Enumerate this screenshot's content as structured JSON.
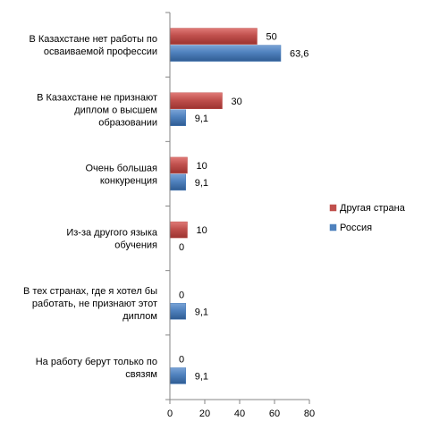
{
  "chart_data": {
    "type": "bar",
    "orientation": "horizontal",
    "title": "",
    "xlabel": "",
    "ylabel": "",
    "xlim": [
      0,
      80
    ],
    "x_ticks": [
      0,
      20,
      40,
      60,
      80
    ],
    "grid": false,
    "legend_position": "right",
    "categories": [
      [
        "В Казахстане нет работы по",
        "осваиваемой профессии"
      ],
      [
        "В Казахстане не признают",
        "диплом о высшем",
        "образовании"
      ],
      [
        "Очень большая",
        "конкуренция"
      ],
      [
        "Из-за другого языка",
        "обучения"
      ],
      [
        "В тех странах, где я хотел бы",
        "работать, не признают этот",
        "диплом"
      ],
      [
        "На работу берут только по",
        "связям"
      ]
    ],
    "series": [
      {
        "name": "Другая страна",
        "color": "#c0504d",
        "values": [
          50,
          30,
          10,
          10,
          0,
          0
        ],
        "labels": [
          "50",
          "30",
          "10",
          "10",
          "0",
          "0"
        ]
      },
      {
        "name": "Россия",
        "color": "#4f81bd",
        "values": [
          63.6,
          9.1,
          9.1,
          0,
          9.1,
          9.1
        ],
        "labels": [
          "63,6",
          "9,1",
          "9,1",
          "0",
          "9,1",
          "9,1"
        ]
      }
    ],
    "legend_order": [
      0,
      1
    ]
  }
}
